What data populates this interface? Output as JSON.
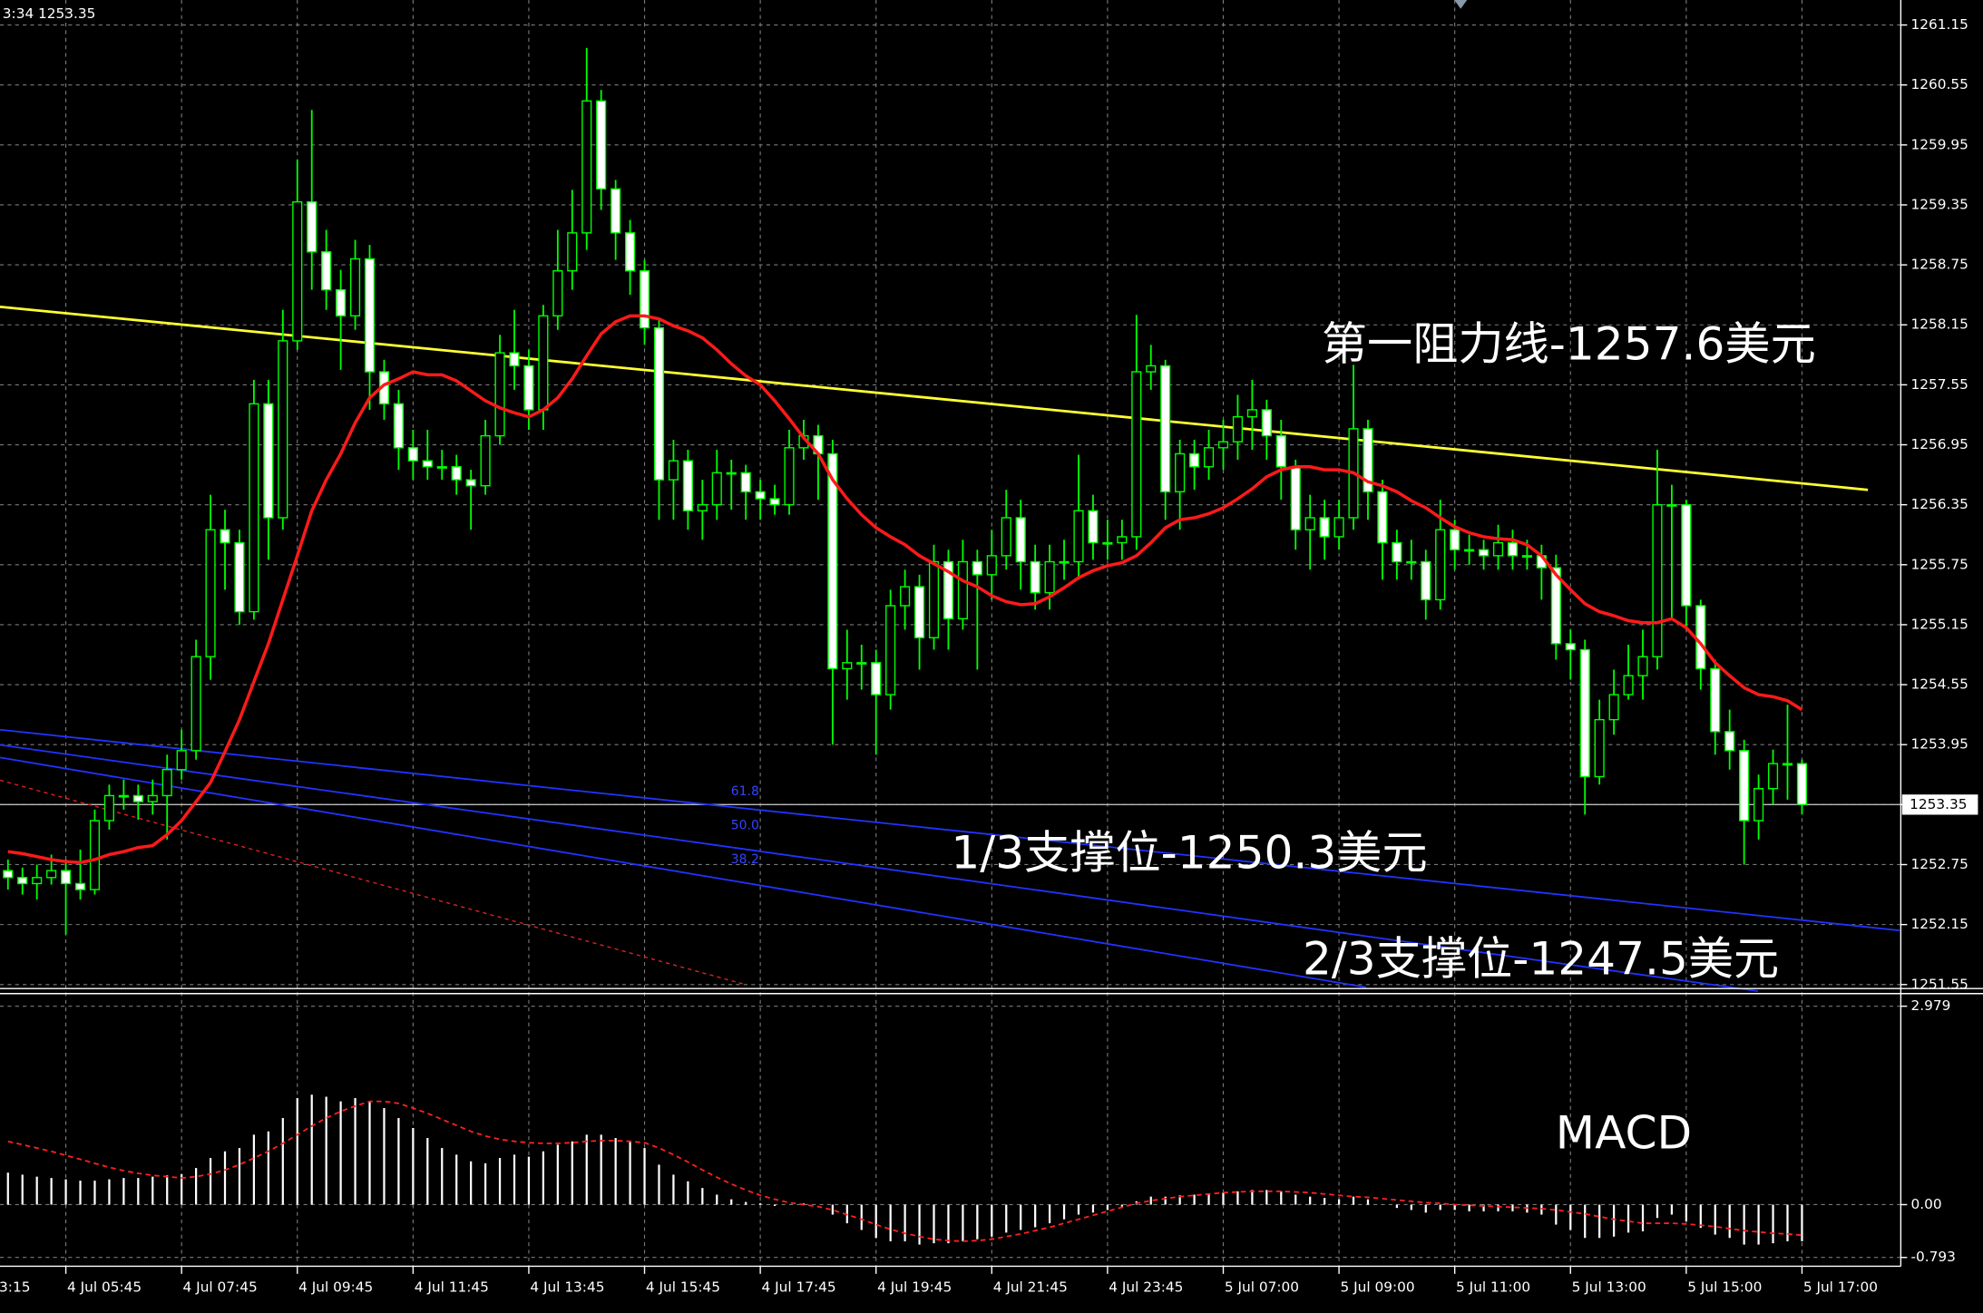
{
  "chart_data": [
    {
      "type": "candlestick",
      "info_text": "3:34 1253.35",
      "x_cut_label": "3:15",
      "categories": [
        null,
        null,
        null,
        null,
        "4 Jul 05:45",
        null,
        null,
        null,
        null,
        null,
        null,
        null,
        "4 Jul 07:45",
        null,
        null,
        null,
        null,
        null,
        null,
        null,
        "4 Jul 09:45",
        null,
        null,
        null,
        null,
        null,
        null,
        null,
        "4 Jul 11:45",
        null,
        null,
        null,
        null,
        null,
        null,
        null,
        "4 Jul 13:45",
        null,
        null,
        null,
        null,
        null,
        null,
        null,
        "4 Jul 15:45",
        null,
        null,
        null,
        null,
        null,
        null,
        null,
        "4 Jul 17:45",
        null,
        null,
        null,
        null,
        null,
        null,
        null,
        "4 Jul 19:45",
        null,
        null,
        null,
        null,
        null,
        null,
        null,
        "4 Jul 21:45",
        null,
        null,
        null,
        null,
        null,
        null,
        null,
        "4 Jul 23:45",
        null,
        null,
        null,
        null,
        null,
        null,
        null,
        "5 Jul 07:00",
        null,
        null,
        null,
        null,
        null,
        null,
        null,
        "5 Jul 09:00",
        null,
        null,
        null,
        null,
        null,
        null,
        null,
        "5 Jul 11:00",
        null,
        null,
        null,
        null,
        null,
        null,
        null,
        "5 Jul 13:00",
        null,
        null,
        null,
        null,
        null,
        null,
        null,
        "5 Jul 15:00",
        null,
        null,
        null,
        null,
        null,
        null,
        null,
        "5 Jul 17:00"
      ],
      "open": [
        1252.69,
        1252.62,
        1252.56,
        1252.62,
        1252.69,
        1252.56,
        1252.5,
        1253.19,
        1253.44,
        1253.44,
        1253.38,
        1253.44,
        1253.7,
        1253.89,
        1254.83,
        1256.1,
        1255.97,
        1255.28,
        1257.36,
        1256.22,
        1257.99,
        1259.38,
        1258.88,
        1258.5,
        1258.24,
        1258.81,
        1257.68,
        1257.36,
        1256.92,
        1256.79,
        1256.73,
        1256.73,
        1256.6,
        1256.54,
        1257.04,
        1257.87,
        1257.74,
        1257.3,
        1258.24,
        1258.69,
        1259.07,
        1260.39,
        1259.51,
        1259.07,
        1258.69,
        1258.12,
        1256.6,
        1256.79,
        1256.29,
        1256.35,
        1256.67,
        1256.67,
        1256.48,
        1256.41,
        1256.35,
        1256.92,
        1257.04,
        1256.86,
        1254.71,
        1254.77,
        1254.77,
        1254.45,
        1255.34,
        1255.53,
        1255.02,
        1255.78,
        1255.21,
        1255.78,
        1255.65,
        1255.84,
        1256.22,
        1255.78,
        1255.47,
        1255.78,
        1255.78,
        1256.29,
        1255.97,
        1255.97,
        1256.03,
        1257.68,
        1257.74,
        1256.48,
        1256.86,
        1256.73,
        1256.92,
        1256.98,
        1257.23,
        1257.3,
        1257.04,
        1256.73,
        1256.1,
        1256.22,
        1256.03,
        1256.22,
        1257.11,
        1256.48,
        1255.97,
        1255.78,
        1255.78,
        1255.4,
        1256.1,
        1255.9,
        1255.9,
        1255.84,
        1255.97,
        1255.84,
        1255.84,
        1255.72,
        1254.96,
        1254.9,
        1253.63,
        1254.2,
        1254.45,
        1254.64,
        1254.83,
        1256.35,
        1256.35,
        1255.34,
        1254.71,
        1254.08,
        1253.89,
        1253.19,
        1253.51,
        1253.76,
        1253.76
      ],
      "high": [
        1252.8,
        1252.72,
        1252.75,
        1252.85,
        1252.8,
        1252.9,
        1253.3,
        1253.55,
        1253.6,
        1253.55,
        1253.6,
        1253.85,
        1254.1,
        1255.0,
        1256.45,
        1256.3,
        1256.1,
        1257.6,
        1257.6,
        1258.3,
        1259.8,
        1260.3,
        1259.1,
        1258.7,
        1259.0,
        1258.95,
        1257.8,
        1257.5,
        1257.1,
        1257.1,
        1256.9,
        1256.85,
        1256.7,
        1257.2,
        1258.05,
        1258.3,
        1257.9,
        1258.35,
        1259.1,
        1259.5,
        1260.92,
        1260.5,
        1259.6,
        1259.2,
        1258.8,
        1258.2,
        1257.0,
        1256.9,
        1256.6,
        1256.9,
        1256.8,
        1256.75,
        1256.6,
        1256.55,
        1257.1,
        1257.2,
        1257.15,
        1257.0,
        1255.1,
        1254.95,
        1254.9,
        1255.5,
        1255.7,
        1255.65,
        1255.95,
        1255.9,
        1256.0,
        1255.9,
        1256.1,
        1256.5,
        1256.4,
        1255.95,
        1255.95,
        1256.0,
        1256.85,
        1256.45,
        1256.2,
        1256.2,
        1258.25,
        1257.95,
        1257.8,
        1257.0,
        1257.0,
        1257.1,
        1257.2,
        1257.45,
        1257.6,
        1257.4,
        1257.2,
        1256.8,
        1256.45,
        1256.4,
        1256.4,
        1257.75,
        1257.2,
        1256.6,
        1256.1,
        1256.0,
        1255.9,
        1256.4,
        1256.2,
        1256.05,
        1256.0,
        1256.15,
        1256.1,
        1256.0,
        1255.95,
        1255.85,
        1255.1,
        1255.0,
        1254.4,
        1254.7,
        1254.95,
        1255.1,
        1256.9,
        1256.55,
        1256.4,
        1255.4,
        1254.8,
        1254.3,
        1254.0,
        1253.65,
        1253.9,
        1254.35,
        1253.8
      ],
      "low": [
        1252.5,
        1252.45,
        1252.4,
        1252.55,
        1252.05,
        1252.4,
        1252.45,
        1253.1,
        1253.3,
        1253.2,
        1253.25,
        1253.0,
        1253.6,
        1253.8,
        1254.6,
        1255.5,
        1255.15,
        1255.2,
        1255.8,
        1256.1,
        1257.9,
        1258.5,
        1258.3,
        1257.7,
        1258.1,
        1257.3,
        1257.2,
        1256.7,
        1256.6,
        1256.6,
        1256.6,
        1256.45,
        1256.1,
        1256.45,
        1256.95,
        1257.5,
        1257.1,
        1257.1,
        1258.1,
        1258.5,
        1258.9,
        1259.3,
        1258.8,
        1258.45,
        1257.95,
        1256.2,
        1256.2,
        1256.1,
        1256.0,
        1256.2,
        1256.3,
        1256.2,
        1256.2,
        1256.25,
        1256.25,
        1256.8,
        1256.4,
        1253.95,
        1254.4,
        1254.5,
        1253.85,
        1254.3,
        1255.1,
        1254.7,
        1254.9,
        1254.9,
        1255.1,
        1254.7,
        1255.4,
        1255.7,
        1255.5,
        1255.3,
        1255.3,
        1255.6,
        1255.6,
        1255.8,
        1255.8,
        1255.8,
        1255.9,
        1257.5,
        1256.2,
        1256.1,
        1256.5,
        1256.6,
        1256.7,
        1256.8,
        1256.9,
        1256.8,
        1256.4,
        1255.9,
        1255.7,
        1255.8,
        1255.9,
        1256.1,
        1256.2,
        1255.6,
        1255.6,
        1255.6,
        1255.2,
        1255.3,
        1255.7,
        1255.75,
        1255.7,
        1255.7,
        1255.7,
        1255.7,
        1255.4,
        1254.8,
        1254.6,
        1253.25,
        1253.55,
        1254.05,
        1254.4,
        1254.4,
        1254.7,
        1255.2,
        1255.1,
        1254.5,
        1253.85,
        1253.7,
        1252.75,
        1253.0,
        1253.35,
        1253.4,
        1253.25
      ],
      "close": [
        1252.62,
        1252.56,
        1252.62,
        1252.69,
        1252.56,
        1252.5,
        1253.19,
        1253.44,
        1253.44,
        1253.38,
        1253.44,
        1253.7,
        1253.89,
        1254.83,
        1256.1,
        1255.97,
        1255.28,
        1257.36,
        1256.22,
        1257.99,
        1259.38,
        1258.88,
        1258.5,
        1258.24,
        1258.81,
        1257.68,
        1257.36,
        1256.92,
        1256.79,
        1256.73,
        1256.73,
        1256.6,
        1256.54,
        1257.04,
        1257.87,
        1257.74,
        1257.3,
        1258.24,
        1258.69,
        1259.07,
        1260.39,
        1259.51,
        1259.07,
        1258.69,
        1258.12,
        1256.6,
        1256.79,
        1256.29,
        1256.35,
        1256.67,
        1256.67,
        1256.48,
        1256.41,
        1256.35,
        1256.92,
        1257.04,
        1256.86,
        1254.71,
        1254.77,
        1254.77,
        1254.45,
        1255.34,
        1255.53,
        1255.02,
        1255.78,
        1255.21,
        1255.78,
        1255.65,
        1255.84,
        1256.22,
        1255.78,
        1255.47,
        1255.78,
        1255.78,
        1256.29,
        1255.97,
        1255.97,
        1256.03,
        1257.68,
        1257.74,
        1256.48,
        1256.86,
        1256.73,
        1256.92,
        1256.98,
        1257.23,
        1257.3,
        1257.04,
        1256.73,
        1256.1,
        1256.22,
        1256.03,
        1256.22,
        1257.11,
        1256.48,
        1255.97,
        1255.78,
        1255.78,
        1255.4,
        1256.1,
        1255.9,
        1255.9,
        1255.84,
        1255.97,
        1255.84,
        1255.84,
        1255.72,
        1254.96,
        1254.9,
        1253.63,
        1254.2,
        1254.45,
        1254.64,
        1254.83,
        1256.35,
        1256.35,
        1255.34,
        1254.71,
        1254.08,
        1253.89,
        1253.19,
        1253.51,
        1253.76,
        1253.76,
        1253.35
      ],
      "overlay_line": {
        "color": "#ff1a1a",
        "values": [
          1252.88,
          1252.86,
          1252.83,
          1252.8,
          1252.78,
          1252.77,
          1252.8,
          1252.85,
          1252.88,
          1252.92,
          1252.94,
          1253.05,
          1253.19,
          1253.38,
          1253.57,
          1253.88,
          1254.2,
          1254.58,
          1254.96,
          1255.4,
          1255.84,
          1256.29,
          1256.6,
          1256.86,
          1257.17,
          1257.42,
          1257.55,
          1257.61,
          1257.68,
          1257.65,
          1257.65,
          1257.59,
          1257.49,
          1257.39,
          1257.32,
          1257.27,
          1257.23,
          1257.3,
          1257.42,
          1257.61,
          1257.84,
          1258.06,
          1258.18,
          1258.24,
          1258.24,
          1258.21,
          1258.14,
          1258.09,
          1258.02,
          1257.9,
          1257.76,
          1257.64,
          1257.55,
          1257.39,
          1257.21,
          1257.02,
          1256.86,
          1256.6,
          1256.41,
          1256.25,
          1256.12,
          1256.03,
          1255.95,
          1255.84,
          1255.76,
          1255.68,
          1255.59,
          1255.53,
          1255.44,
          1255.38,
          1255.35,
          1255.36,
          1255.43,
          1255.52,
          1255.62,
          1255.69,
          1255.74,
          1255.77,
          1255.84,
          1255.97,
          1256.12,
          1256.2,
          1256.22,
          1256.26,
          1256.32,
          1256.41,
          1256.51,
          1256.63,
          1256.7,
          1256.73,
          1256.73,
          1256.7,
          1256.7,
          1256.67,
          1256.58,
          1256.54,
          1256.48,
          1256.39,
          1256.32,
          1256.22,
          1256.13,
          1256.07,
          1256.03,
          1256.01,
          1256.0,
          1255.95,
          1255.84,
          1255.65,
          1255.5,
          1255.36,
          1255.28,
          1255.24,
          1255.19,
          1255.17,
          1255.17,
          1255.21,
          1255.12,
          1254.96,
          1254.77,
          1254.64,
          1254.52,
          1254.45,
          1254.43,
          1254.39,
          1254.3
        ]
      },
      "last_price": 1253.35,
      "annotations": [
        "第一阻力线-1257.6美元",
        "1/3支撑位-1250.3美元",
        "2/3支撑位-1247.5美元"
      ],
      "fib_labels": [
        "61.8",
        "50.0",
        "38.2"
      ],
      "ylim": [
        1251.51,
        1261.4
      ],
      "yticks": [
        1251.55,
        1252.15,
        1252.75,
        1253.35,
        1253.95,
        1254.55,
        1255.15,
        1255.75,
        1256.35,
        1256.95,
        1257.55,
        1258.15,
        1258.75,
        1259.35,
        1259.95,
        1260.55,
        1261.15
      ],
      "grid": true,
      "up_fill": "#000000",
      "down_fill": "#ffffff",
      "wick_color": "#00ff00"
    },
    {
      "type": "bar",
      "label": "MACD",
      "values": [
        0.48,
        0.45,
        0.42,
        0.4,
        0.38,
        0.36,
        0.36,
        0.38,
        0.4,
        0.4,
        0.42,
        0.44,
        0.46,
        0.55,
        0.7,
        0.8,
        0.85,
        1.05,
        1.1,
        1.3,
        1.6,
        1.65,
        1.62,
        1.55,
        1.6,
        1.55,
        1.45,
        1.3,
        1.15,
        1.0,
        0.85,
        0.75,
        0.65,
        0.62,
        0.7,
        0.75,
        0.72,
        0.8,
        0.9,
        0.95,
        1.05,
        1.05,
        1.0,
        0.95,
        0.85,
        0.6,
        0.45,
        0.35,
        0.25,
        0.15,
        0.08,
        0.04,
        0.02,
        -0.02,
        0.0,
        0.02,
        0.0,
        -0.15,
        -0.28,
        -0.38,
        -0.5,
        -0.55,
        -0.55,
        -0.6,
        -0.58,
        -0.58,
        -0.55,
        -0.52,
        -0.48,
        -0.42,
        -0.38,
        -0.34,
        -0.28,
        -0.22,
        -0.15,
        -0.12,
        -0.08,
        -0.05,
        0.05,
        0.12,
        0.12,
        0.14,
        0.15,
        0.16,
        0.18,
        0.2,
        0.22,
        0.22,
        0.2,
        0.15,
        0.12,
        0.1,
        0.08,
        0.12,
        0.08,
        0.0,
        -0.05,
        -0.08,
        -0.12,
        -0.08,
        -0.08,
        -0.1,
        -0.1,
        -0.1,
        -0.1,
        -0.12,
        -0.15,
        -0.3,
        -0.38,
        -0.5,
        -0.5,
        -0.48,
        -0.42,
        -0.4,
        -0.2,
        -0.15,
        -0.25,
        -0.35,
        -0.45,
        -0.5,
        -0.6,
        -0.6,
        -0.58,
        -0.55,
        -0.55
      ],
      "color": "#ffffff",
      "signal": {
        "color": "#ff2020",
        "values": [
          0.95,
          0.9,
          0.85,
          0.8,
          0.74,
          0.68,
          0.62,
          0.56,
          0.51,
          0.47,
          0.44,
          0.42,
          0.4,
          0.42,
          0.46,
          0.52,
          0.6,
          0.7,
          0.8,
          0.92,
          1.05,
          1.18,
          1.3,
          1.4,
          1.48,
          1.55,
          1.55,
          1.52,
          1.45,
          1.37,
          1.28,
          1.19,
          1.1,
          1.03,
          0.98,
          0.95,
          0.93,
          0.92,
          0.92,
          0.93,
          0.95,
          0.96,
          0.96,
          0.95,
          0.93,
          0.85,
          0.75,
          0.64,
          0.52,
          0.41,
          0.31,
          0.22,
          0.14,
          0.08,
          0.03,
          0.0,
          -0.03,
          -0.08,
          -0.15,
          -0.22,
          -0.3,
          -0.37,
          -0.43,
          -0.48,
          -0.52,
          -0.54,
          -0.55,
          -0.54,
          -0.52,
          -0.48,
          -0.44,
          -0.39,
          -0.34,
          -0.28,
          -0.22,
          -0.16,
          -0.1,
          -0.04,
          0.02,
          0.06,
          0.09,
          0.12,
          0.14,
          0.16,
          0.18,
          0.19,
          0.2,
          0.2,
          0.2,
          0.19,
          0.18,
          0.16,
          0.14,
          0.12,
          0.11,
          0.09,
          0.07,
          0.05,
          0.03,
          0.02,
          0.0,
          -0.01,
          -0.02,
          -0.03,
          -0.04,
          -0.05,
          -0.06,
          -0.08,
          -0.11,
          -0.14,
          -0.18,
          -0.22,
          -0.25,
          -0.28,
          -0.28,
          -0.28,
          -0.29,
          -0.31,
          -0.33,
          -0.36,
          -0.39,
          -0.41,
          -0.43,
          -0.44,
          -0.46
        ]
      },
      "ylim": [
        -0.793,
        2.979
      ],
      "yticks": [
        -0.793,
        {
          "value": 0,
          "label": "0.00"
        },
        2.979
      ],
      "grid": true
    }
  ]
}
